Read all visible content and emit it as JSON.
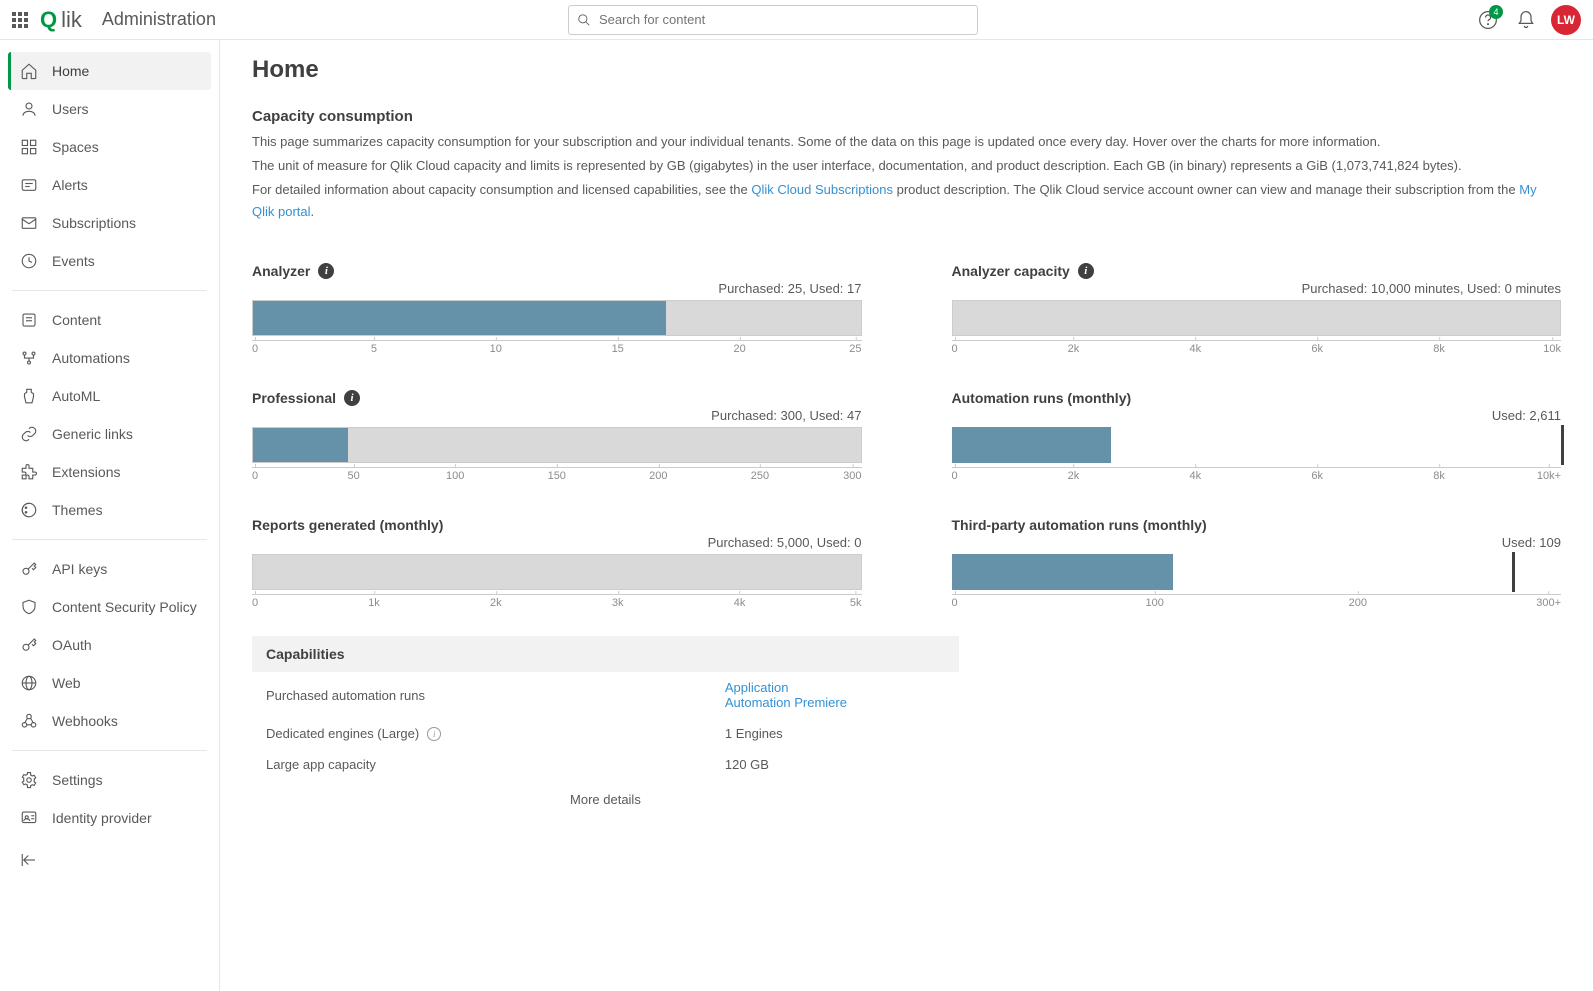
{
  "header": {
    "section": "Administration",
    "search_placeholder": "Search for content",
    "help_badge": "4",
    "avatar_initials": "LW",
    "avatar_color": "#d92635"
  },
  "sidebar": {
    "items": [
      {
        "label": "Home",
        "active": true
      },
      {
        "label": "Users"
      },
      {
        "label": "Spaces"
      },
      {
        "label": "Alerts"
      },
      {
        "label": "Subscriptions"
      },
      {
        "label": "Events"
      }
    ],
    "group2": [
      {
        "label": "Content"
      },
      {
        "label": "Automations"
      },
      {
        "label": "AutoML"
      },
      {
        "label": "Generic links"
      },
      {
        "label": "Extensions"
      },
      {
        "label": "Themes"
      }
    ],
    "group3": [
      {
        "label": "API keys"
      },
      {
        "label": "Content Security Policy"
      },
      {
        "label": "OAuth"
      },
      {
        "label": "Web"
      },
      {
        "label": "Webhooks"
      }
    ],
    "group4": [
      {
        "label": "Settings"
      },
      {
        "label": "Identity provider"
      }
    ]
  },
  "page": {
    "title": "Home",
    "section_title": "Capacity consumption",
    "p1": "This page summarizes capacity consumption for your subscription and your individual tenants. Some of the data on this page is updated once every day. Hover over the charts for more information.",
    "p2": "The unit of measure for Qlik Cloud capacity and limits is represented by GB (gigabytes) in the user interface, documentation, and product description. Each GB (in binary) represents a GiB (1,073,741,824 bytes).",
    "p3a": "For detailed information about capacity consumption and licensed capabilities, see the ",
    "link1": "Qlik Cloud Subscriptions",
    "p3b": " product description. The Qlik Cloud service account owner can view and manage their subscription from the ",
    "link2": "My Qlik portal",
    "p3c": "."
  },
  "charts": {
    "analyzer": {
      "title": "Analyzer",
      "info": true,
      "sub": "Purchased: 25, Used: 17",
      "max": 25,
      "used": 17,
      "marker": null,
      "fill_color": "#6592a8",
      "track_color": "#d9d9d9",
      "ticks": [
        "0",
        "5",
        "10",
        "15",
        "20",
        "25"
      ]
    },
    "analyzer_capacity": {
      "title": "Analyzer capacity",
      "info": true,
      "sub": "Purchased: 10,000 minutes, Used: 0 minutes",
      "max": 10000,
      "used": 0,
      "marker": null,
      "fill_color": "#6592a8",
      "track_color": "#d9d9d9",
      "ticks": [
        "0",
        "2k",
        "4k",
        "6k",
        "8k",
        "10k"
      ]
    },
    "professional": {
      "title": "Professional",
      "info": true,
      "sub": "Purchased: 300, Used: 47",
      "max": 300,
      "used": 47,
      "marker": null,
      "fill_color": "#6592a8",
      "track_color": "#d9d9d9",
      "ticks": [
        "0",
        "50",
        "100",
        "150",
        "200",
        "250",
        "300"
      ]
    },
    "automation_runs": {
      "title": "Automation runs (monthly)",
      "info": false,
      "sub": "Used: 2,611",
      "max": 10000,
      "used": 2611,
      "marker": 10000,
      "notrack": true,
      "fill_color": "#6592a8",
      "ticks": [
        "0",
        "2k",
        "4k",
        "6k",
        "8k",
        "10k+"
      ]
    },
    "reports": {
      "title": "Reports generated (monthly)",
      "info": false,
      "sub": "Purchased: 5,000, Used: 0",
      "max": 5000,
      "used": 0,
      "marker": null,
      "fill_color": "#6592a8",
      "track_color": "#d9d9d9",
      "ticks": [
        "0",
        "1k",
        "2k",
        "3k",
        "4k",
        "5k"
      ]
    },
    "third_party": {
      "title": "Third-party automation runs (monthly)",
      "info": false,
      "sub": "Used: 109",
      "max": 300,
      "used": 109,
      "marker": 276,
      "notrack": true,
      "fill_color": "#6592a8",
      "ticks": [
        "0",
        "100",
        "200",
        "300+"
      ]
    }
  },
  "capabilities": {
    "header": "Capabilities",
    "rows": [
      {
        "label": "Purchased automation runs",
        "value_links": [
          "Application",
          "Automation Premiere"
        ]
      },
      {
        "label": "Dedicated engines (Large)",
        "info": true,
        "value": "1 Engines"
      },
      {
        "label": "Large app capacity",
        "value": "120 GB"
      }
    ],
    "more": "More details"
  }
}
